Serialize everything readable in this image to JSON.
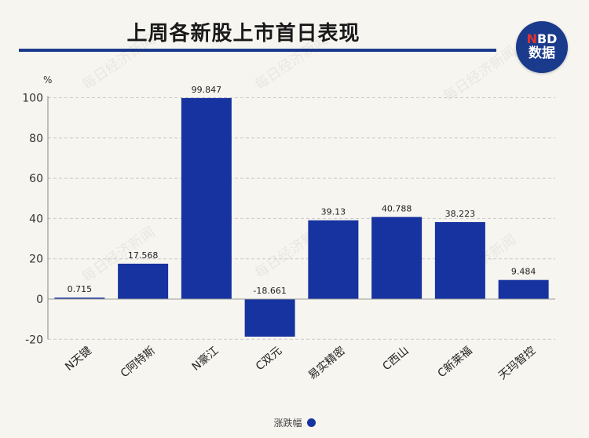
{
  "header": {
    "title": "上周各新股上市首日表现",
    "logo_line1_accent": "N",
    "logo_line1_rest": "BD",
    "logo_line2": "数据"
  },
  "watermark": "每日经济新闻",
  "colors": {
    "bar": "#1633a0",
    "rule": "#1a3a8c",
    "accent": "#e5322d"
  },
  "chart_data": {
    "type": "bar",
    "y_unit": "%",
    "categories": [
      "N天键",
      "C阿特斯",
      "N豪江",
      "C双元",
      "易实精密",
      "C西山",
      "C新莱福",
      "天玛智控"
    ],
    "series": [
      {
        "name": "涨跌幅",
        "values": [
          0.715,
          17.568,
          99.847,
          -18.661,
          39.13,
          40.788,
          38.223,
          9.484
        ],
        "labels": [
          "0.715",
          "17.568",
          "99.847",
          "-18.661",
          "39.13",
          "40.788",
          "38.223",
          "9.484"
        ]
      }
    ],
    "ylim": [
      -20,
      100
    ],
    "yticks": [
      -20,
      0,
      20,
      40,
      60,
      80,
      100
    ],
    "grid": true,
    "legend": "bottom-center"
  }
}
